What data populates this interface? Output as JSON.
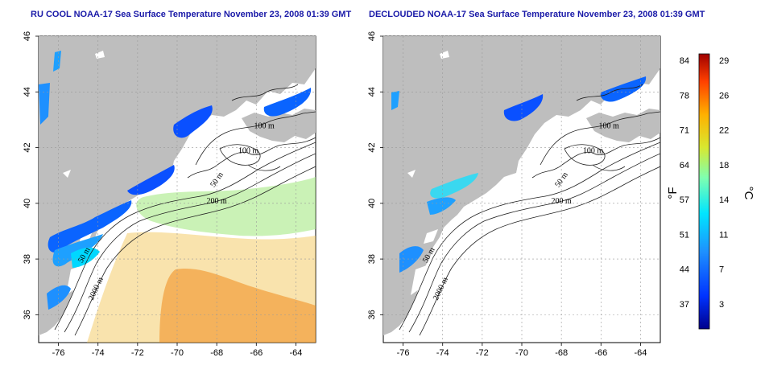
{
  "titles": {
    "left": "RU COOL NOAA-17 Sea Surface Temperature November 23, 2008 01:39 GMT",
    "right": "DECLOUDED NOAA-17 Sea Surface Temperature November 23, 2008 01:39 GMT"
  },
  "map": {
    "lon_ticks": [
      "-76",
      "-74",
      "-72",
      "-70",
      "-68",
      "-66",
      "-64"
    ],
    "lat_ticks": [
      "46",
      "44",
      "42",
      "40",
      "38",
      "36"
    ],
    "lon_range": [
      -77,
      -63
    ],
    "lat_range": [
      35,
      46
    ],
    "land_color": "#bebebe",
    "water_color": "#ffffff",
    "grid": "dotted",
    "left_contours": [
      "100 m",
      "100 m",
      "50 m",
      "200 m",
      "50 m",
      "2000 m"
    ],
    "right_contours": [
      "100 m",
      "100 m",
      "50 m",
      "200 m",
      "50 m",
      "2000 m"
    ]
  },
  "colorbar": {
    "fahrenheit_ticks": [
      "84",
      "78",
      "71",
      "64",
      "57",
      "51",
      "44",
      "37"
    ],
    "celsius_ticks": [
      "29",
      "26",
      "22",
      "18",
      "14",
      "11",
      "7",
      "3"
    ],
    "fahrenheit_unit": "°F",
    "celsius_unit": "°C",
    "colors": [
      "#00008c",
      "#0033ff",
      "#1e90ff",
      "#00e5ff",
      "#7fffb0",
      "#d8e830",
      "#ffb000",
      "#ff4000",
      "#a00000"
    ]
  }
}
